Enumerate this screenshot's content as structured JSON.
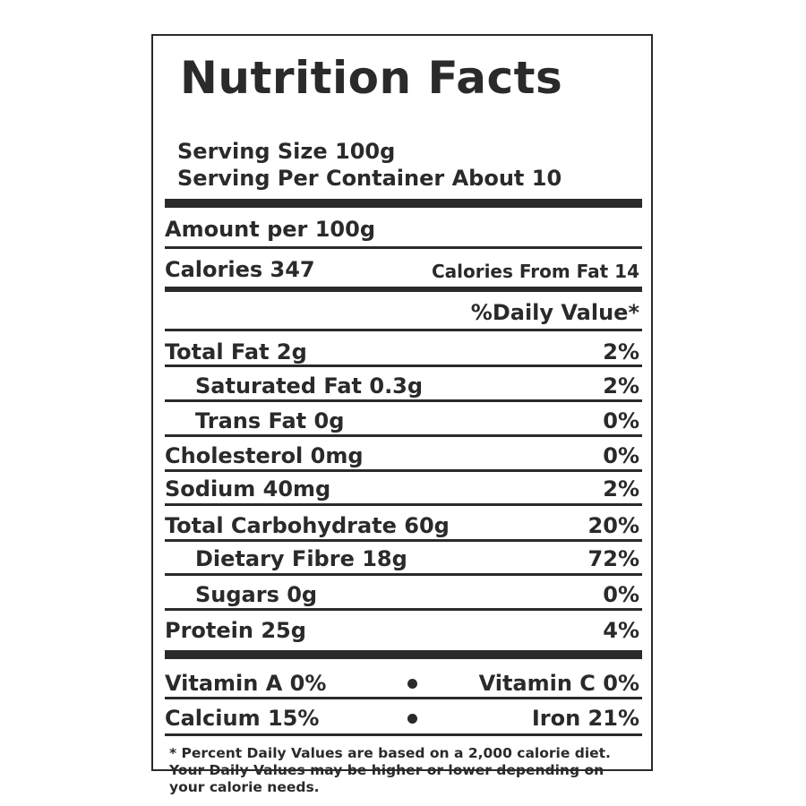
{
  "title": "Nutrition Facts",
  "serving_size": "Serving Size 100g",
  "servings_per_container": "Serving Per Container About 10",
  "amount_per": "Amount per 100g",
  "calories": "Calories 347",
  "calories_from_fat": "Calories From Fat 14",
  "daily_value_header": "%Daily Value*",
  "nutrients": [
    {
      "label": "Total Fat 2g",
      "percent": "2%"
    },
    {
      "label": "Saturated Fat 0.3g",
      "percent": "2%"
    },
    {
      "label": "Trans Fat 0g",
      "percent": "0%"
    },
    {
      "label": "Cholesterol 0mg",
      "percent": "0%"
    },
    {
      "label": "Sodium 40mg",
      "percent": "2%"
    },
    {
      "label": "Total Carbohydrate 60g",
      "percent": "20%"
    },
    {
      "label": "Dietary Fibre 18g",
      "percent": "72%"
    },
    {
      "label": "Sugars 0g",
      "percent": "0%"
    },
    {
      "label": "Protein 25g",
      "percent": "4%"
    }
  ],
  "vitamins": {
    "vitamin_a": "Vitamin A 0%",
    "vitamin_c": "Vitamin C 0%",
    "calcium": "Calcium 15%",
    "iron": "Iron 21%"
  },
  "footnote": "* Percent Daily Values are based on a 2,000 calorie diet. Your Daily Values may be higher or lower depending on your calorie needs.",
  "colors": {
    "ink": "#2a2a2a",
    "background": "#ffffff"
  }
}
